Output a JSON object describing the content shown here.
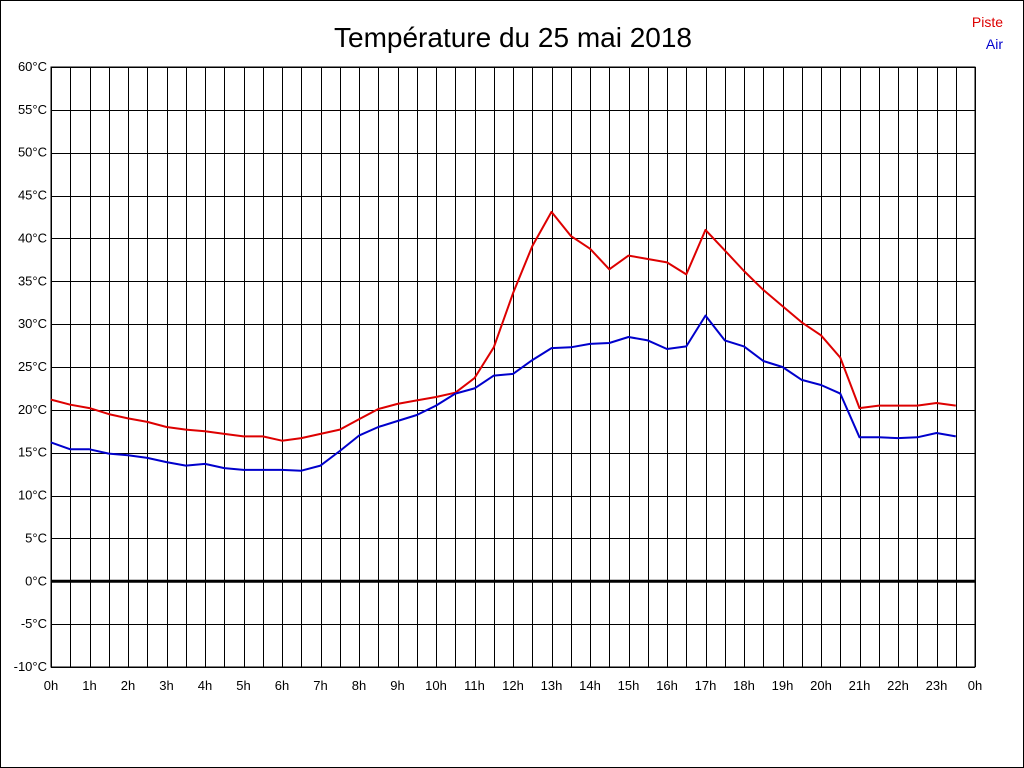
{
  "chart_data": {
    "type": "line",
    "title": "Température du 25 mai 2018",
    "xlabel": "",
    "ylabel": "",
    "ylim": [
      -10,
      60
    ],
    "xlim": [
      0,
      24
    ],
    "grid": true,
    "legend_position": "top-right",
    "y_ticks": [
      {
        "value": -10,
        "label": "-10°C"
      },
      {
        "value": -5,
        "label": "-5°C"
      },
      {
        "value": 0,
        "label": "0°C"
      },
      {
        "value": 5,
        "label": "5°C"
      },
      {
        "value": 10,
        "label": "10°C"
      },
      {
        "value": 15,
        "label": "15°C"
      },
      {
        "value": 20,
        "label": "20°C"
      },
      {
        "value": 25,
        "label": "25°C"
      },
      {
        "value": 30,
        "label": "30°C"
      },
      {
        "value": 35,
        "label": "35°C"
      },
      {
        "value": 40,
        "label": "40°C"
      },
      {
        "value": 45,
        "label": "45°C"
      },
      {
        "value": 50,
        "label": "50°C"
      },
      {
        "value": 55,
        "label": "55°C"
      },
      {
        "value": 60,
        "label": "60°C"
      }
    ],
    "x_ticks": [
      {
        "value": 0,
        "label": "0h"
      },
      {
        "value": 1,
        "label": "1h"
      },
      {
        "value": 2,
        "label": "2h"
      },
      {
        "value": 3,
        "label": "3h"
      },
      {
        "value": 4,
        "label": "4h"
      },
      {
        "value": 5,
        "label": "5h"
      },
      {
        "value": 6,
        "label": "6h"
      },
      {
        "value": 7,
        "label": "7h"
      },
      {
        "value": 8,
        "label": "8h"
      },
      {
        "value": 9,
        "label": "9h"
      },
      {
        "value": 10,
        "label": "10h"
      },
      {
        "value": 11,
        "label": "11h"
      },
      {
        "value": 12,
        "label": "12h"
      },
      {
        "value": 13,
        "label": "13h"
      },
      {
        "value": 14,
        "label": "14h"
      },
      {
        "value": 15,
        "label": "15h"
      },
      {
        "value": 16,
        "label": "16h"
      },
      {
        "value": 17,
        "label": "17h"
      },
      {
        "value": 18,
        "label": "18h"
      },
      {
        "value": 19,
        "label": "19h"
      },
      {
        "value": 20,
        "label": "20h"
      },
      {
        "value": 21,
        "label": "21h"
      },
      {
        "value": 22,
        "label": "22h"
      },
      {
        "value": 23,
        "label": "23h"
      },
      {
        "value": 24,
        "label": "0h"
      }
    ],
    "x": [
      0,
      0.5,
      1,
      1.5,
      2,
      2.5,
      3,
      3.5,
      4,
      4.5,
      5,
      5.5,
      6,
      6.5,
      7,
      7.5,
      8,
      8.5,
      9,
      9.5,
      10,
      10.5,
      11,
      11.5,
      12,
      12.5,
      13,
      13.5,
      14,
      14.5,
      15,
      15.5,
      16,
      16.5,
      17,
      17.5,
      18,
      18.5,
      19,
      19.5,
      20,
      20.5,
      21,
      21.5,
      22,
      22.5,
      23,
      23.5
    ],
    "series": [
      {
        "name": "Piste",
        "color": "#dd0000",
        "values": [
          21.2,
          20.6,
          20.2,
          19.5,
          19.0,
          18.6,
          18.0,
          17.7,
          17.5,
          17.2,
          16.9,
          16.9,
          16.4,
          16.7,
          17.2,
          17.7,
          18.9,
          20.1,
          20.7,
          21.1,
          21.5,
          22.0,
          23.7,
          27.3,
          33.6,
          39.1,
          43.1,
          40.3,
          38.8,
          36.4,
          38.0,
          37.6,
          37.2,
          35.8,
          41.0,
          38.6,
          36.2,
          34.0,
          32.1,
          30.2,
          28.7,
          26.1,
          20.2,
          20.5,
          20.5,
          20.5,
          20.8,
          20.5
        ]
      },
      {
        "name": "Air",
        "color": "#0000cc",
        "values": [
          16.2,
          15.4,
          15.4,
          14.9,
          14.7,
          14.4,
          13.9,
          13.5,
          13.7,
          13.2,
          13.0,
          13.0,
          13.0,
          12.9,
          13.5,
          15.2,
          17.0,
          18.0,
          18.7,
          19.4,
          20.5,
          21.9,
          22.5,
          24.0,
          24.2,
          25.8,
          27.2,
          27.3,
          27.7,
          27.8,
          28.5,
          28.1,
          27.1,
          27.4,
          31.0,
          28.1,
          27.4,
          25.7,
          25.0,
          23.5,
          22.9,
          21.9,
          16.8,
          16.8,
          16.7,
          16.8,
          17.3,
          16.9
        ]
      }
    ]
  }
}
